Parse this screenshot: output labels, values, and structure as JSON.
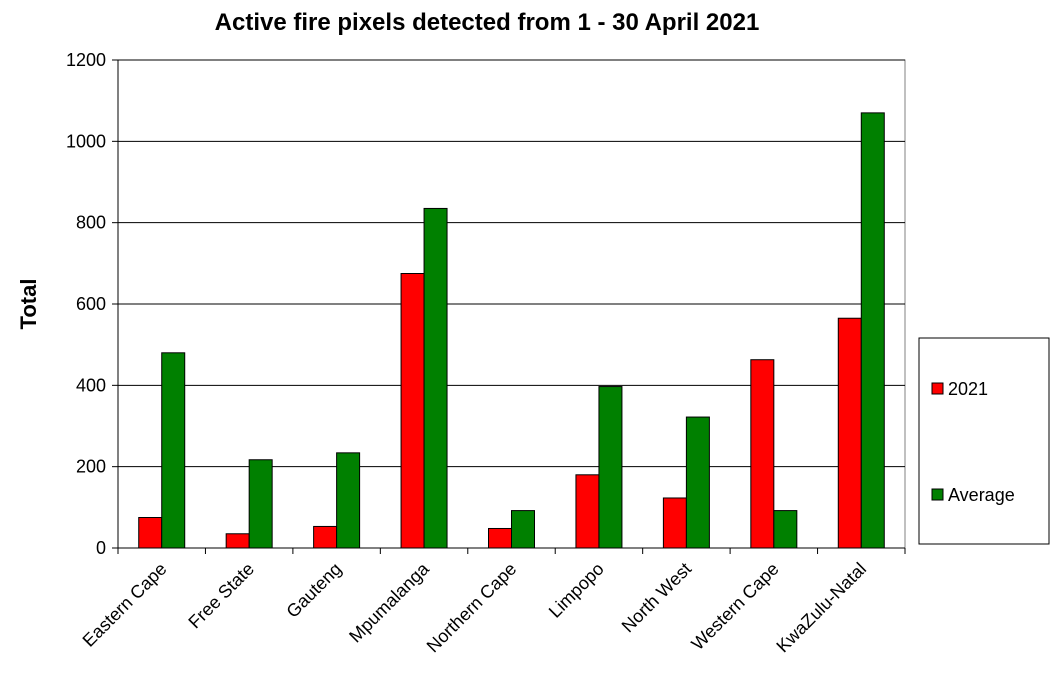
{
  "chart_data": {
    "type": "bar",
    "title": "Active fire pixels detected from 1 - 30 April  2021",
    "xlabel": "",
    "ylabel": "Total",
    "categories": [
      "Eastern Cape",
      "Free State",
      "Gauteng",
      "Mpumalanga",
      "Northern Cape",
      "Limpopo",
      "North West",
      "Western Cape",
      "KwaZulu-Natal"
    ],
    "series": [
      {
        "name": "2021",
        "color": "#ff0000",
        "values": [
          75,
          35,
          53,
          675,
          48,
          180,
          123,
          463,
          565
        ]
      },
      {
        "name": "Average",
        "color": "#008000",
        "values": [
          480,
          217,
          234,
          835,
          92,
          397,
          322,
          92,
          1070
        ]
      }
    ],
    "ylim": [
      0,
      1200
    ],
    "yticks": [
      0,
      200,
      400,
      600,
      800,
      1000,
      1200
    ],
    "grid": true,
    "legend": "right"
  }
}
